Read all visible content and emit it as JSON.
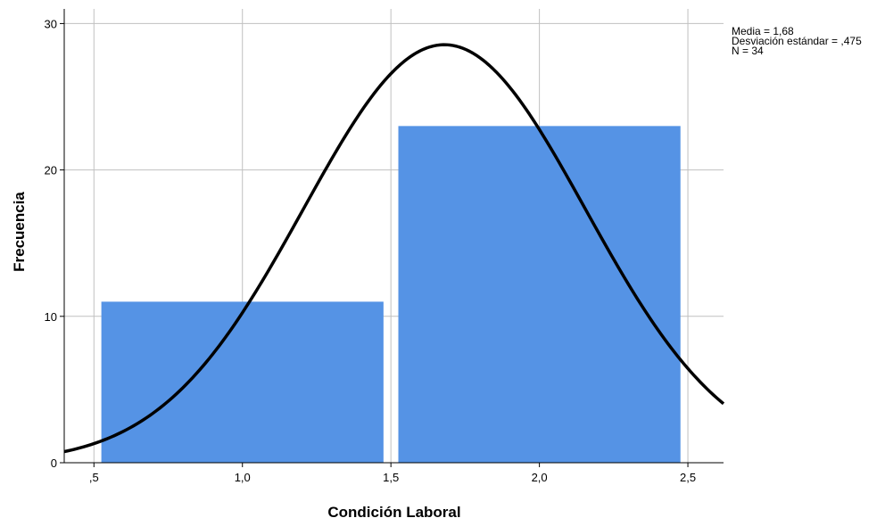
{
  "chart_data": {
    "type": "bar",
    "subtype": "histogram",
    "xlabel": "Condición Laboral",
    "ylabel": "Frecuencia",
    "xlim": [
      0.4,
      2.62
    ],
    "ylim": [
      0,
      31
    ],
    "x_ticks": [
      {
        "value": 0.5,
        "label": ",5"
      },
      {
        "value": 1.0,
        "label": "1,0"
      },
      {
        "value": 1.5,
        "label": "1,5"
      },
      {
        "value": 2.0,
        "label": "2,0"
      },
      {
        "value": 2.5,
        "label": "2,5"
      }
    ],
    "y_ticks": [
      {
        "value": 0,
        "label": "0"
      },
      {
        "value": 10,
        "label": "10"
      },
      {
        "value": 20,
        "label": "20"
      },
      {
        "value": 30,
        "label": "30"
      }
    ],
    "bins": [
      {
        "start": 0.525,
        "end": 1.475,
        "count": 11
      },
      {
        "start": 1.525,
        "end": 2.475,
        "count": 23
      }
    ],
    "normal_curve": {
      "mean": 1.68,
      "sd": 0.475,
      "n": 34,
      "bin_width": 1.0
    },
    "grid": true,
    "colors": {
      "bar": "#5593E5",
      "bar_edge": "#ffffff",
      "curve": "#000000",
      "grid": "#c0c0c0"
    },
    "stats_labels": [
      "Media = 1,68",
      "Desviación estándar = ,475",
      "N = 34"
    ]
  }
}
